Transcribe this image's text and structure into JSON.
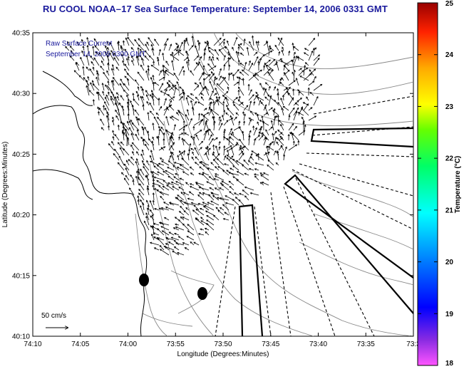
{
  "title": "RU COOL  NOAA–17  Sea Surface Temperature:  September 14, 2006 0331 GMT",
  "legend": {
    "line1": "Raw Surface Current",
    "line2": "September 14, 2006 0300 GMT"
  },
  "scale_label": "50 cm/s",
  "xlabel": "Longitude (Degrees:Minutes)",
  "ylabel": "Latitude (Degrees:Minutes)",
  "x_ticks": [
    "74:10",
    "74:05",
    "74:00",
    "73:55",
    "73:50",
    "73:45",
    "73:40",
    "73:35",
    "73:3"
  ],
  "y_ticks": [
    "40:35",
    "40:30",
    "40:25",
    "40:20",
    "40:15",
    "40:10"
  ],
  "colorbar": {
    "label": "Temperature (°C)",
    "ticks": [
      "25",
      "24",
      "23",
      "22",
      "21",
      "20",
      "19",
      "18"
    ],
    "min": 18,
    "max": 25
  },
  "colors": {
    "title": "#1a1a9c",
    "coastline": "#000000",
    "bathymetry": "#888888",
    "vectors": "#000000"
  }
}
